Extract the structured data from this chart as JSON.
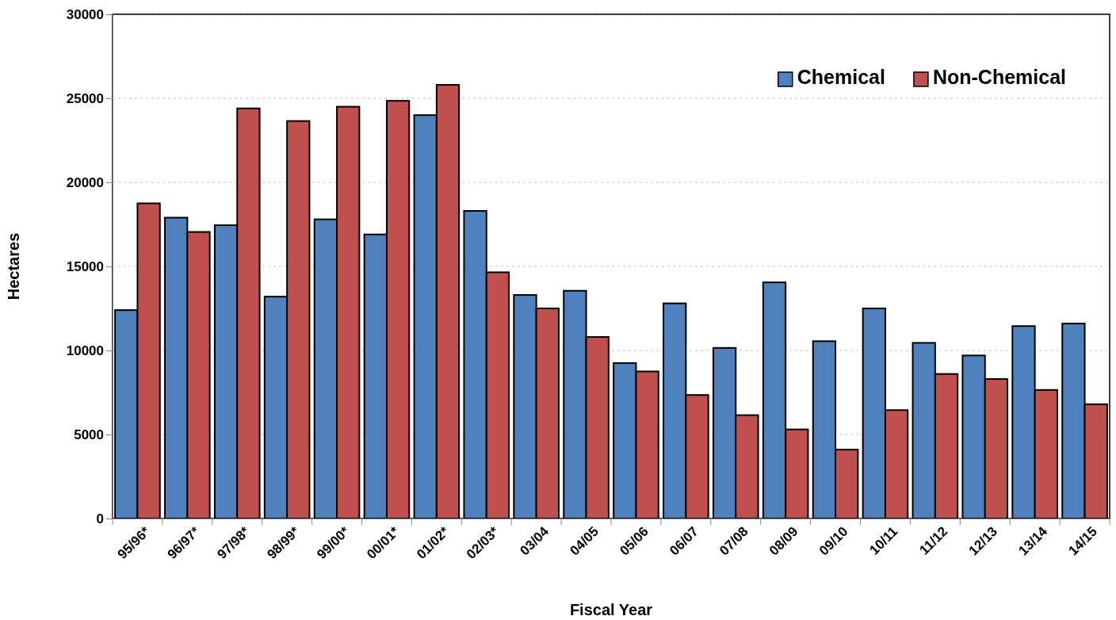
{
  "chart_data": {
    "type": "bar",
    "xlabel": "Fiscal Year",
    "ylabel": "Hectares",
    "categories": [
      "95/96*",
      "96/97*",
      "97/98*",
      "98/99*",
      "99/00*",
      "00/01*",
      "01/02*",
      "02/03*",
      "03/04",
      "04/05",
      "05/06",
      "06/07",
      "07/08",
      "08/09",
      "09/10",
      "10/11",
      "11/12",
      "12/13",
      "13/14",
      "14/15"
    ],
    "series": [
      {
        "name": "Chemical",
        "color": "#4f81bd",
        "values": [
          12400,
          17900,
          17450,
          13200,
          17800,
          16900,
          24000,
          18300,
          13300,
          13550,
          9250,
          12800,
          10150,
          14050,
          10550,
          12500,
          10450,
          9700,
          11450,
          11600
        ]
      },
      {
        "name": "Non-Chemical",
        "color": "#c0504d",
        "values": [
          18750,
          17050,
          24400,
          23650,
          24500,
          24850,
          25800,
          14650,
          12500,
          10800,
          8750,
          7350,
          6150,
          5300,
          4100,
          6450,
          8600,
          8300,
          7650,
          6800
        ]
      }
    ],
    "ylim": [
      0,
      30000
    ],
    "yticks": [
      0,
      5000,
      10000,
      15000,
      20000,
      25000,
      30000
    ],
    "grid": "y",
    "legend": "top right"
  }
}
